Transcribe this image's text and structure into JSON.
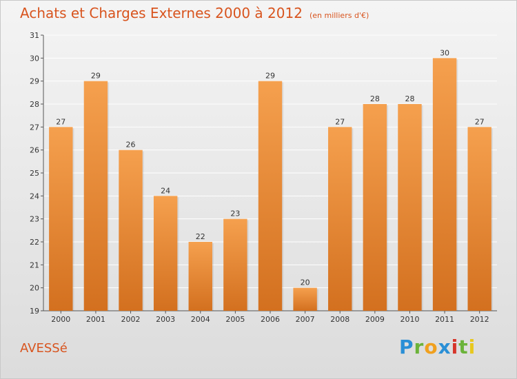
{
  "chart_title": "Achats et Charges Externes 2000 à 2012",
  "chart_unit": "(en milliers d'€)",
  "place_name": "AVESSé",
  "brand": {
    "letters": [
      "P",
      "r",
      "o",
      "x",
      "i",
      "t",
      "i"
    ],
    "colors": [
      "#2a8fd6",
      "#6bb33a",
      "#f0a01e",
      "#2a8fd6",
      "#d6352a",
      "#6bb33a",
      "#e8c81e"
    ]
  },
  "colors": {
    "bar_top": "#f5a04e",
    "bar_bottom": "#d3701f",
    "title": "#d8541e",
    "grid": "#ffffff"
  },
  "chart_data": {
    "type": "bar",
    "categories": [
      "2000",
      "2001",
      "2002",
      "2003",
      "2004",
      "2005",
      "2006",
      "2007",
      "2008",
      "2009",
      "2010",
      "2011",
      "2012"
    ],
    "values": [
      27,
      29,
      26,
      24,
      22,
      23,
      29,
      20,
      27,
      28,
      28,
      30,
      27
    ],
    "title": "Achats et Charges Externes 2000 à 2012",
    "xlabel": "",
    "ylabel": "",
    "ylim": [
      19,
      31
    ],
    "yticks": [
      19,
      20,
      21,
      22,
      23,
      24,
      25,
      26,
      27,
      28,
      29,
      30,
      31
    ],
    "grid": true,
    "data_labels": true
  }
}
